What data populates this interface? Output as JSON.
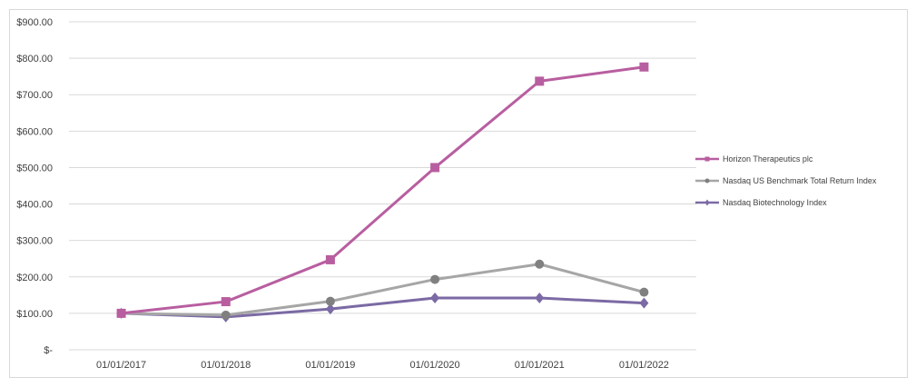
{
  "chart_data": {
    "type": "line",
    "title": "",
    "xlabel": "",
    "ylabel": "",
    "categories": [
      "01/01/2017",
      "01/01/2018",
      "01/01/2019",
      "01/01/2020",
      "01/01/2021",
      "01/01/2022"
    ],
    "y_tick_values": [
      0,
      100,
      200,
      300,
      400,
      500,
      600,
      700,
      800,
      900
    ],
    "y_tick_labels": [
      "$-",
      "$100.00",
      "$200.00",
      "$300.00",
      "$400.00",
      "$500.00",
      "$600.00",
      "$700.00",
      "$800.00",
      "$900.00"
    ],
    "ylim": [
      0,
      900
    ],
    "grid": true,
    "legend_position": "right",
    "series": [
      {
        "name": "Horizon Therapeutics plc",
        "values": [
          100,
          132,
          247,
          500,
          737,
          776
        ],
        "color": "#b85ea0",
        "marker": "square"
      },
      {
        "name": "Nasdaq US Benchmark Total Return Index",
        "values": [
          100,
          95,
          133,
          193,
          235,
          158
        ],
        "color": "#a6a6a6",
        "marker": "circle"
      },
      {
        "name": "Nasdaq Biotechnology Index",
        "values": [
          100,
          90,
          112,
          142,
          142,
          128
        ],
        "color": "#7b6aa4",
        "marker": "diamond"
      }
    ]
  }
}
